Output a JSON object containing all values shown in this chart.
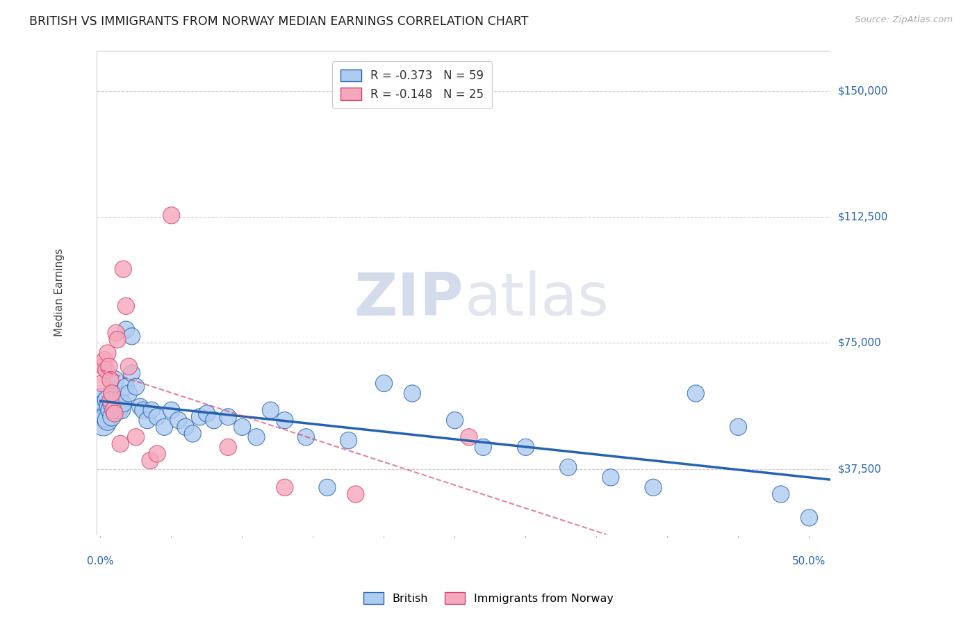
{
  "title": "BRITISH VS IMMIGRANTS FROM NORWAY MEDIAN EARNINGS CORRELATION CHART",
  "source": "Source: ZipAtlas.com",
  "ylabel": "Median Earnings",
  "ytick_labels": [
    "$37,500",
    "$75,000",
    "$112,500",
    "$150,000"
  ],
  "ytick_values": [
    37500,
    75000,
    112500,
    150000
  ],
  "ymin": 18000,
  "ymax": 162000,
  "xmin": -0.003,
  "xmax": 0.515,
  "legend_british_R": "-0.373",
  "legend_british_N": "59",
  "legend_norway_R": "-0.148",
  "legend_norway_N": "25",
  "british_color": "#aecbf0",
  "british_line_color": "#2563b0",
  "norway_color": "#f5a8bc",
  "norway_line_color": "#d44070",
  "watermark_zip": "ZIP",
  "watermark_atlas": "atlas",
  "british_x": [
    0.001,
    0.002,
    0.002,
    0.003,
    0.004,
    0.004,
    0.005,
    0.005,
    0.006,
    0.007,
    0.008,
    0.008,
    0.009,
    0.01,
    0.011,
    0.012,
    0.013,
    0.014,
    0.015,
    0.016,
    0.018,
    0.02,
    0.022,
    0.025,
    0.028,
    0.03,
    0.033,
    0.036,
    0.04,
    0.045,
    0.05,
    0.055,
    0.06,
    0.065,
    0.07,
    0.075,
    0.08,
    0.09,
    0.1,
    0.11,
    0.12,
    0.13,
    0.145,
    0.16,
    0.175,
    0.2,
    0.22,
    0.25,
    0.27,
    0.3,
    0.33,
    0.36,
    0.39,
    0.42,
    0.45,
    0.48,
    0.5,
    0.018,
    0.022
  ],
  "british_y": [
    57000,
    54000,
    51000,
    55000,
    57000,
    53000,
    58000,
    52000,
    56000,
    55000,
    57000,
    53000,
    60000,
    64000,
    57000,
    58000,
    55000,
    58000,
    55000,
    57000,
    62000,
    60000,
    66000,
    62000,
    56000,
    55000,
    52000,
    55000,
    53000,
    50000,
    55000,
    52000,
    50000,
    48000,
    53000,
    54000,
    52000,
    53000,
    50000,
    47000,
    55000,
    52000,
    47000,
    32000,
    46000,
    63000,
    60000,
    52000,
    44000,
    44000,
    38000,
    35000,
    32000,
    60000,
    50000,
    30000,
    23000,
    79000,
    77000
  ],
  "british_sizes": [
    120,
    90,
    80,
    70,
    65,
    60,
    55,
    55,
    50,
    50,
    45,
    45,
    45,
    45,
    45,
    42,
    42,
    40,
    40,
    40,
    38,
    38,
    38,
    38,
    38,
    38,
    38,
    38,
    38,
    38,
    38,
    38,
    38,
    38,
    38,
    38,
    38,
    38,
    38,
    38,
    38,
    38,
    38,
    38,
    38,
    38,
    38,
    38,
    38,
    38,
    38,
    38,
    38,
    38,
    38,
    38,
    38,
    38,
    38
  ],
  "norway_x": [
    0.001,
    0.002,
    0.003,
    0.004,
    0.005,
    0.006,
    0.007,
    0.007,
    0.008,
    0.009,
    0.01,
    0.011,
    0.012,
    0.014,
    0.016,
    0.018,
    0.02,
    0.025,
    0.035,
    0.04,
    0.05,
    0.09,
    0.13,
    0.18,
    0.26
  ],
  "norway_y": [
    63000,
    68000,
    70000,
    67000,
    72000,
    68000,
    64000,
    58000,
    60000,
    55000,
    54000,
    78000,
    76000,
    45000,
    97000,
    86000,
    68000,
    47000,
    40000,
    42000,
    113000,
    44000,
    32000,
    30000,
    47000
  ],
  "norway_sizes": [
    38,
    38,
    38,
    38,
    38,
    38,
    38,
    38,
    38,
    38,
    38,
    38,
    38,
    38,
    38,
    38,
    38,
    38,
    38,
    38,
    38,
    38,
    38,
    38,
    38
  ]
}
